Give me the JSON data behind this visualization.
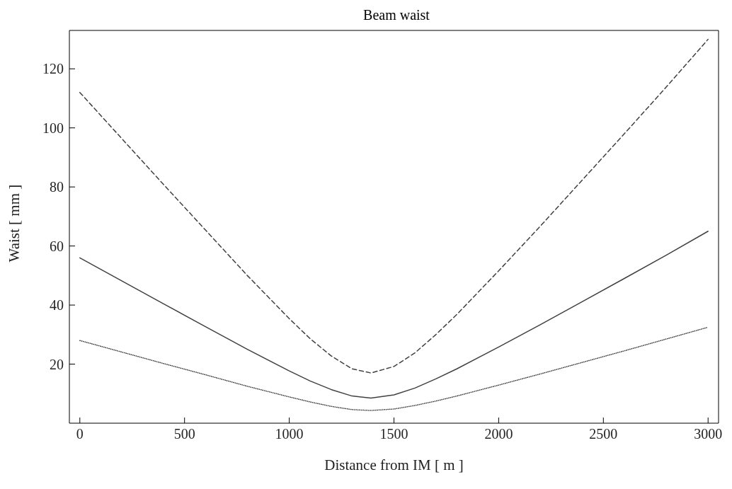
{
  "chart_data": {
    "type": "line",
    "title": "Beam waist",
    "xlabel": "Distance from IM [ m ]",
    "ylabel": "Waist [ mm ]",
    "x": [
      0,
      200,
      400,
      600,
      800,
      1000,
      1100,
      1200,
      1300,
      1390,
      1500,
      1600,
      1700,
      1800,
      2000,
      2200,
      2400,
      2600,
      2800,
      3000
    ],
    "series": [
      {
        "color": "#404040",
        "line_style": "dashed",
        "values": [
          112,
          96.4,
          80.8,
          65.4,
          50,
          35.4,
          28.6,
          22.8,
          18.4,
          17,
          19.2,
          23.8,
          30,
          36.8,
          51.6,
          66.8,
          82.4,
          98,
          113.8,
          130
        ]
      },
      {
        "color": "#404040",
        "line_style": "solid",
        "values": [
          56,
          48.2,
          40.4,
          32.7,
          25,
          17.7,
          14.3,
          11.4,
          9.2,
          8.5,
          9.6,
          11.9,
          15,
          18.4,
          25.8,
          33.4,
          41.2,
          49,
          56.9,
          65
        ]
      },
      {
        "color": "#404040",
        "line_style": "dotted",
        "values": [
          28,
          24.1,
          20.2,
          16.4,
          12.5,
          8.9,
          7.2,
          5.7,
          4.6,
          4.3,
          4.8,
          6,
          7.5,
          9.2,
          12.9,
          16.7,
          20.6,
          24.5,
          28.5,
          32.5
        ]
      }
    ],
    "xlim": [
      -50,
      3050
    ],
    "xticks": [
      0,
      500,
      1000,
      1500,
      2000,
      2500,
      3000
    ],
    "ylim": [
      0,
      133
    ],
    "yticks": [
      20,
      40,
      60,
      80,
      100,
      120
    ],
    "marker": "none"
  }
}
